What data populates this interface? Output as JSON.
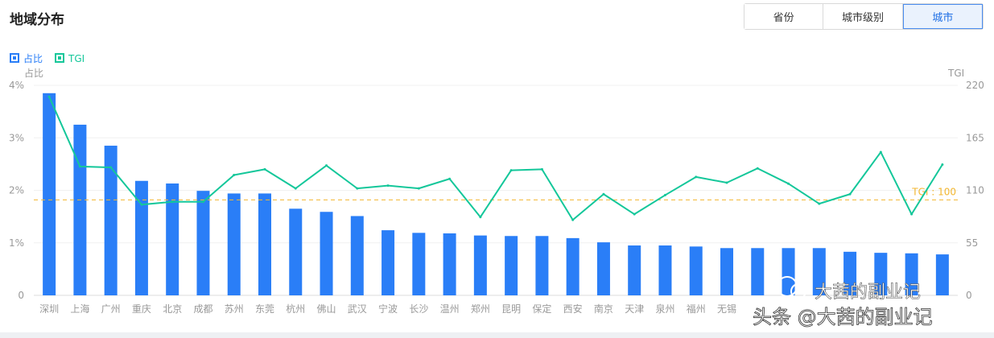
{
  "header": {
    "title": "地域分布",
    "tabs": [
      {
        "label": "省份",
        "active": false
      },
      {
        "label": "城市级别",
        "active": false
      },
      {
        "label": "城市",
        "active": true
      }
    ]
  },
  "watermark": {
    "line1": "大茜的副业记",
    "line2": "头条 @大茜的副业记"
  },
  "colors": {
    "bar": "#2a7ef7",
    "line": "#14c79a",
    "reference": "#f2b630",
    "axis_text": "#999999",
    "grid": "#f0f0f0"
  },
  "chart_data": {
    "type": "bar",
    "categories": [
      "深圳",
      "上海",
      "广州",
      "重庆",
      "北京",
      "成都",
      "苏州",
      "东莞",
      "杭州",
      "佛山",
      "武汉",
      "宁波",
      "长沙",
      "温州",
      "郑州",
      "昆明",
      "保定",
      "西安",
      "南京",
      "天津",
      "泉州",
      "福州",
      "无锡",
      "",
      "",
      "",
      "",
      "",
      "",
      ""
    ],
    "series": [
      {
        "name": "占比",
        "type": "bar",
        "axis": "left",
        "values": [
          3.85,
          3.25,
          2.85,
          2.18,
          2.13,
          1.99,
          1.94,
          1.94,
          1.65,
          1.59,
          1.51,
          1.24,
          1.19,
          1.18,
          1.14,
          1.13,
          1.13,
          1.09,
          1.01,
          0.95,
          0.95,
          0.93,
          0.9,
          0.9,
          0.9,
          0.9,
          0.83,
          0.81,
          0.8,
          0.78
        ]
      },
      {
        "name": "TGI",
        "type": "line",
        "axis": "right",
        "values": [
          208,
          135,
          134,
          95,
          98,
          98,
          126,
          132,
          112,
          136,
          112,
          115,
          112,
          122,
          82,
          131,
          132,
          79,
          106,
          85,
          105,
          124,
          118,
          133,
          117,
          96,
          106,
          150,
          85,
          137
        ]
      }
    ],
    "legend": {
      "position": "top-left",
      "items": [
        "占比",
        "TGI"
      ]
    },
    "y_left": {
      "label": "占比",
      "min": 0,
      "max": 4,
      "ticks": [
        "0",
        "1%",
        "2%",
        "3%",
        "4%"
      ]
    },
    "y_right": {
      "label": "TGI",
      "min": 0,
      "max": 220,
      "ticks": [
        "0",
        "55",
        "110",
        "165",
        "220"
      ]
    },
    "reference_line": {
      "value": 100,
      "axis": "right",
      "label": "TGI : 100"
    },
    "grid": true
  }
}
